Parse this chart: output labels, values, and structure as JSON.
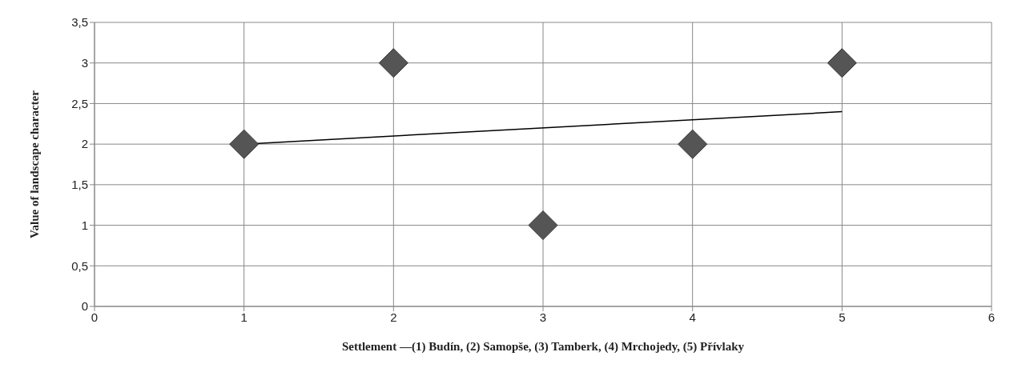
{
  "chart_data": {
    "type": "scatter",
    "xlabel": "Settlement —(1) Budín, (2) Samopše, (3) Tamberk, (4) Mrchojedy, (5) Přívlaky",
    "ylabel": "Value of landscape character",
    "series": [
      {
        "x": [
          1,
          2,
          3,
          4,
          5
        ],
        "values": [
          2,
          3,
          1,
          2,
          3
        ],
        "color": "#555555",
        "marker": "diamond"
      },
      {
        "type": "line",
        "x": [
          1,
          5
        ],
        "values": [
          2,
          2.4
        ],
        "color": "#000000",
        "marker": "none"
      }
    ],
    "xlim": [
      0,
      6
    ],
    "xticks": [
      0,
      1,
      2,
      3,
      4,
      5,
      6
    ],
    "ylim": [
      0,
      3.5
    ],
    "yticks": [
      0,
      {
        "value": 0.5,
        "label": "0,5"
      },
      1,
      {
        "value": 1.5,
        "label": "1,5"
      },
      2,
      {
        "value": 2.5,
        "label": "2,5"
      },
      3,
      {
        "value": 3.5,
        "label": "3,5"
      }
    ],
    "grid": true
  }
}
